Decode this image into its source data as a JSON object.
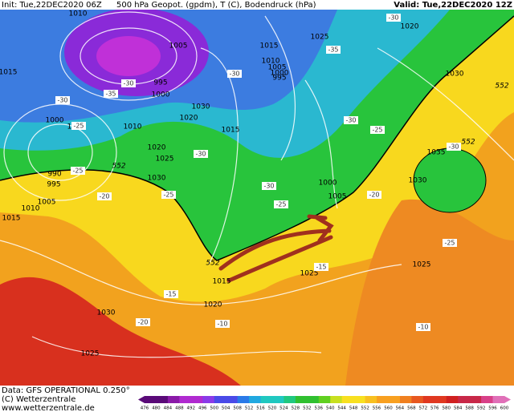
{
  "header": {
    "init": "Init: Tue,22DEC2020 06Z",
    "title": "500 hPa Geopot. (gpdm), T (C), Bodendruck (hPa)",
    "valid": "Valid: Tue,22DEC2020 12Z"
  },
  "footer": {
    "source": "Data: GFS OPERATIONAL 0.250°",
    "copyright": "(C) Wetterzentrale",
    "url": "www.wetterzentrale.de"
  },
  "legend": {
    "labels": [
      "476",
      "480",
      "484",
      "488",
      "492",
      "496",
      "500",
      "504",
      "508",
      "512",
      "516",
      "520",
      "524",
      "528",
      "532",
      "536",
      "540",
      "544",
      "548",
      "552",
      "556",
      "560",
      "564",
      "568",
      "572",
      "576",
      "580",
      "584",
      "588",
      "592",
      "596",
      "600"
    ]
  },
  "map": {
    "isobars": [
      "1010",
      "1005",
      "995",
      "1000",
      "1030",
      "1020",
      "1025",
      "1015",
      "1010",
      "1005",
      "1000",
      "995",
      "1015",
      "1020",
      "1025",
      "1030",
      "1010",
      "1010",
      "1000",
      "990",
      "995",
      "1005",
      "1010",
      "1015",
      "1000",
      "1005",
      "1030",
      "1035",
      "1030",
      "1025",
      "1025",
      "1015",
      "1020",
      "1030",
      "1025",
      "1020",
      "1015"
    ],
    "temperatures": [
      "-30",
      "-35",
      "-30",
      "-25",
      "-25",
      "-20",
      "-25",
      "-30",
      "-30",
      "-35",
      "-30",
      "-30",
      "-25",
      "-30",
      "-25",
      "-20",
      "-30",
      "-25",
      "-15",
      "-15",
      "-20",
      "-10",
      "-10"
    ],
    "heights": [
      "552",
      "552",
      "552",
      "552"
    ]
  }
}
